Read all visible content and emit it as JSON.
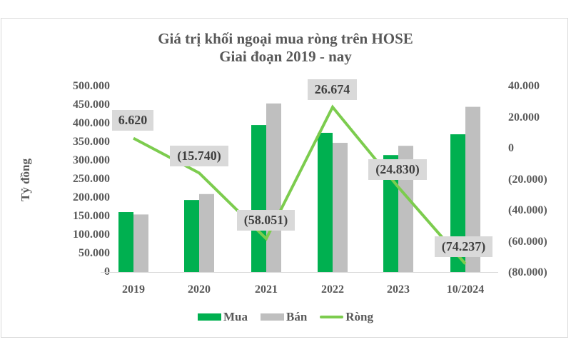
{
  "chart": {
    "title_line1": "Giá trị khối ngoại mua ròng trên HOSE",
    "title_line2": "Giai đoạn 2019 - nay",
    "ylabel_left": "Tỷ đồng",
    "left_ticks": [
      "500.000",
      "450.000",
      "400.000",
      "350.000",
      "300.000",
      "250.000",
      "200.000",
      "150.000",
      "100.000",
      "50.000",
      "0"
    ],
    "right_ticks": [
      "40.000",
      "20.000",
      "0",
      "(20.000)",
      "(40.000)",
      "(60.000)",
      "(80.000)"
    ],
    "categories": [
      "2019",
      "2020",
      "2021",
      "2022",
      "2023",
      "10/2024"
    ],
    "net_labels": [
      "6.620",
      "(15.740)",
      "(58.051)",
      "26.674",
      "(24.830)",
      "(74.237)"
    ],
    "legend": {
      "mua": "Mua",
      "ban": "Bán",
      "rong": "Ròng"
    },
    "colors": {
      "mua": "#00b050",
      "ban": "#bfbfbf",
      "rong": "#7ccc4e",
      "label_bg": "#d9d9d9",
      "text": "#595959"
    }
  },
  "chart_data": {
    "type": "bar",
    "title": "Giá trị khối ngoại mua ròng trên HOSE - Giai đoạn 2019 - nay",
    "xlabel": "",
    "ylabel": "Tỷ đồng",
    "categories": [
      "2019",
      "2020",
      "2021",
      "2022",
      "2023",
      "10/2024"
    ],
    "series": [
      {
        "name": "Mua",
        "type": "bar",
        "axis": "left",
        "values": [
          161500,
          194000,
          396000,
          375000,
          315000,
          371000
        ]
      },
      {
        "name": "Bán",
        "type": "bar",
        "axis": "left",
        "values": [
          155000,
          210000,
          454000,
          348000,
          340000,
          445000
        ]
      },
      {
        "name": "Ròng",
        "type": "line",
        "axis": "right",
        "values": [
          6620,
          -15740,
          -58051,
          26674,
          -24830,
          -74237
        ]
      }
    ],
    "ylim": [
      0,
      500000
    ],
    "ylim_right": [
      -80000,
      40000
    ],
    "grid": false,
    "legend_position": "bottom"
  }
}
